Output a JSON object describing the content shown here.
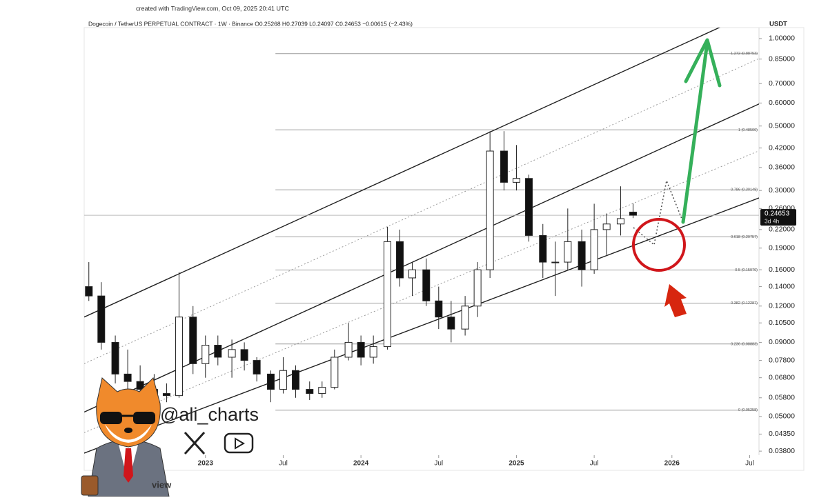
{
  "chart_data": {
    "type": "candlestick",
    "header": "created with TradingView.com, Oct 09, 2025 20:41 UTC",
    "title": "Dogecoin / TetherUS PERPETUAL CONTRACT · 1W · Binance   O0.25268  H0.27039  L0.24097  C0.24653  −0.00615 (−2.43%)",
    "y_axis_label": "USDT",
    "log_scale": true,
    "xlim": [
      2022.22,
      2026.56
    ],
    "ylim": [
      0.0368,
      1.091
    ],
    "xticks": [
      {
        "value": 2023,
        "label": "2023"
      },
      {
        "value": 2023.5,
        "label": "Jul"
      },
      {
        "value": 2024,
        "label": "2024"
      },
      {
        "value": 2024.5,
        "label": "Jul"
      },
      {
        "value": 2025,
        "label": "2025"
      },
      {
        "value": 2025.5,
        "label": "Jul"
      },
      {
        "value": 2026,
        "label": "2026"
      },
      {
        "value": 2026.5,
        "label": "Jul"
      }
    ],
    "yticks": [
      {
        "value": 1,
        "label": "1.00000"
      },
      {
        "value": 0.85,
        "label": "0.85000"
      },
      {
        "value": 0.7,
        "label": "0.70000"
      },
      {
        "value": 0.6,
        "label": "0.60000"
      },
      {
        "value": 0.5,
        "label": "0.50000"
      },
      {
        "value": 0.42,
        "label": "0.42000"
      },
      {
        "value": 0.36,
        "label": "0.36000"
      },
      {
        "value": 0.3,
        "label": "0.30000"
      },
      {
        "value": 0.26,
        "label": "0.26000"
      },
      {
        "value": 0.22,
        "label": "0.22000"
      },
      {
        "value": 0.19,
        "label": "0.19000"
      },
      {
        "value": 0.16,
        "label": "0.16000"
      },
      {
        "value": 0.14,
        "label": "0.14000"
      },
      {
        "value": 0.12,
        "label": "0.12000"
      },
      {
        "value": 0.105,
        "label": "0.10500"
      },
      {
        "value": 0.09,
        "label": "0.09000"
      },
      {
        "value": 0.078,
        "label": "0.07800"
      },
      {
        "value": 0.068,
        "label": "0.06800"
      },
      {
        "value": 0.058,
        "label": "0.05800"
      },
      {
        "value": 0.05,
        "label": "0.05000"
      },
      {
        "value": 0.0435,
        "label": "0.04350"
      },
      {
        "value": 0.038,
        "label": "0.03800"
      }
    ],
    "up_color": "#ffffff",
    "down_color": "#111111",
    "candles": {
      "x": [
        2022.25,
        2022.33,
        2022.42,
        2022.5,
        2022.58,
        2022.67,
        2022.75,
        2022.83,
        2022.92,
        2023.0,
        2023.08,
        2023.17,
        2023.25,
        2023.33,
        2023.42,
        2023.5,
        2023.58,
        2023.67,
        2023.75,
        2023.83,
        2023.92,
        2024.0,
        2024.08,
        2024.17,
        2024.25,
        2024.33,
        2024.42,
        2024.5,
        2024.58,
        2024.67,
        2024.75,
        2024.83,
        2024.92,
        2025.0,
        2025.08,
        2025.17,
        2025.25,
        2025.33,
        2025.42,
        2025.5,
        2025.58,
        2025.67,
        2025.75
      ],
      "open": [
        0.14,
        0.13,
        0.09,
        0.07,
        0.066,
        0.062,
        0.06,
        0.059,
        0.11,
        0.076,
        0.088,
        0.08,
        0.085,
        0.078,
        0.07,
        0.062,
        0.072,
        0.062,
        0.06,
        0.063,
        0.08,
        0.09,
        0.08,
        0.087,
        0.2,
        0.15,
        0.16,
        0.125,
        0.11,
        0.1,
        0.12,
        0.16,
        0.41,
        0.32,
        0.33,
        0.21,
        0.17,
        0.17,
        0.2,
        0.16,
        0.22,
        0.23,
        0.25268
      ],
      "high": [
        0.17,
        0.145,
        0.095,
        0.085,
        0.075,
        0.07,
        0.065,
        0.157,
        0.12,
        0.095,
        0.095,
        0.092,
        0.09,
        0.08,
        0.072,
        0.08,
        0.075,
        0.066,
        0.066,
        0.085,
        0.105,
        0.095,
        0.095,
        0.225,
        0.22,
        0.17,
        0.175,
        0.14,
        0.125,
        0.13,
        0.17,
        0.48,
        0.48,
        0.43,
        0.34,
        0.23,
        0.2,
        0.26,
        0.22,
        0.27,
        0.25,
        0.31,
        0.27039
      ],
      "low": [
        0.125,
        0.085,
        0.065,
        0.058,
        0.058,
        0.057,
        0.056,
        0.058,
        0.07,
        0.068,
        0.075,
        0.068,
        0.072,
        0.066,
        0.056,
        0.06,
        0.058,
        0.057,
        0.058,
        0.062,
        0.078,
        0.075,
        0.076,
        0.085,
        0.14,
        0.13,
        0.12,
        0.1,
        0.09,
        0.095,
        0.11,
        0.15,
        0.3,
        0.3,
        0.2,
        0.15,
        0.13,
        0.16,
        0.14,
        0.155,
        0.18,
        0.21,
        0.24097
      ],
      "close": [
        0.13,
        0.09,
        0.07,
        0.066,
        0.062,
        0.06,
        0.059,
        0.11,
        0.076,
        0.088,
        0.08,
        0.085,
        0.078,
        0.07,
        0.062,
        0.072,
        0.062,
        0.06,
        0.063,
        0.08,
        0.09,
        0.08,
        0.087,
        0.2,
        0.15,
        0.16,
        0.125,
        0.11,
        0.1,
        0.12,
        0.16,
        0.41,
        0.32,
        0.33,
        0.21,
        0.17,
        0.17,
        0.2,
        0.16,
        0.22,
        0.23,
        0.24,
        0.24653
      ]
    },
    "last_price": 0.24653,
    "countdown": "3d 4h",
    "fib_color": "#9a9a9a",
    "fib_start_x": 2023.45,
    "fib_levels": [
      {
        "value": 0.88753,
        "label": "1.272 (0.88753)"
      },
      {
        "value": 0.485,
        "label": "1 (0.48500)"
      },
      {
        "value": 0.30148,
        "label": "0.786 (0.30148)"
      },
      {
        "value": 0.20757,
        "label": "0.618 (0.20757)"
      },
      {
        "value": 0.1597,
        "label": "0.5 (0.15970)"
      },
      {
        "value": 0.12287,
        "label": "0.382 (0.12287)"
      },
      {
        "value": 0.08883,
        "label": "0.236 (0.08883)"
      },
      {
        "value": 0.05258,
        "label": "0 (0.05258)"
      }
    ],
    "channel": [
      {
        "x": [
          2022.22,
          2026.48
        ],
        "y": [
          0.11,
          1.204
        ],
        "style": "solid",
        "color": "#222222"
      },
      {
        "x": [
          2022.22,
          2026.59
        ],
        "y": [
          0.076,
          0.868
        ],
        "style": "dotted",
        "color": "#9a9a9a"
      },
      {
        "x": [
          2022.22,
          2026.57
        ],
        "y": [
          0.0518,
          0.599
        ],
        "style": "solid",
        "color": "#222222"
      },
      {
        "x": [
          2022.22,
          2026.57
        ],
        "y": [
          0.044,
          0.413
        ],
        "style": "dotted",
        "color": "#9a9a9a"
      },
      {
        "x": [
          2022.22,
          2026.57
        ],
        "y": [
          0.0374,
          0.284
        ],
        "style": "solid",
        "color": "#222222"
      }
    ],
    "handle": "@ali_charts",
    "logo_fragment": "view"
  }
}
